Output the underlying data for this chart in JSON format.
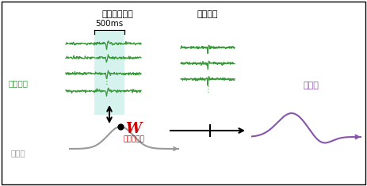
{
  "bg_color": "#ffffff",
  "border_color": "#000000",
  "green_color": "#3a9a3a",
  "purple_color": "#8855aa",
  "gray_color": "#999999",
  "highlight_color": "#c8eeea",
  "red_color": "#cc0000",
  "title_left": "一部のデータ",
  "title_right": "別データ",
  "label_cortex": "皮質脳波",
  "label_muscle": "筋活動",
  "label_decoder": "デコーダー",
  "label_W": "W",
  "label_recon": "再構成",
  "label_500ms": "500ms"
}
